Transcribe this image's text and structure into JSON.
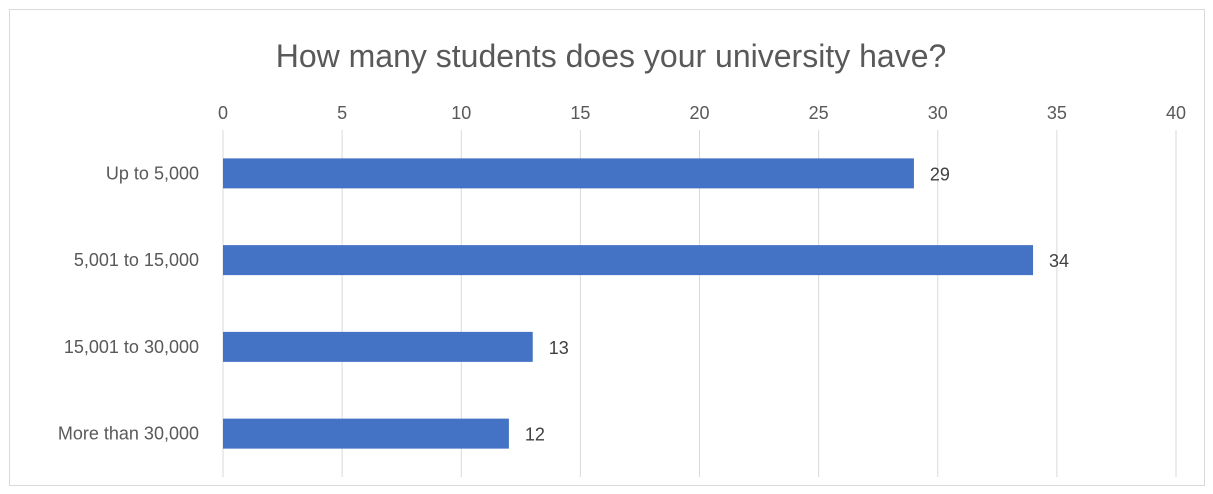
{
  "chart_data": {
    "type": "bar",
    "orientation": "horizontal",
    "title": "How many students does your university have?",
    "categories": [
      "Up to 5,000",
      "5,001 to 15,000",
      "15,001 to 30,000",
      "More than 30,000"
    ],
    "values": [
      29,
      34,
      13,
      12
    ],
    "xlim": [
      0,
      40
    ],
    "x_ticks": [
      0,
      5,
      10,
      15,
      20,
      25,
      30,
      35,
      40
    ],
    "x_tick_labels": [
      "0",
      "5",
      "10",
      "15",
      "20",
      "25",
      "30",
      "35",
      "40"
    ],
    "x_axis_position": "top",
    "grid": true,
    "data_labels": true,
    "legend": "none",
    "bar_color": "#4472C4",
    "grid_color": "#d9d9d9"
  }
}
